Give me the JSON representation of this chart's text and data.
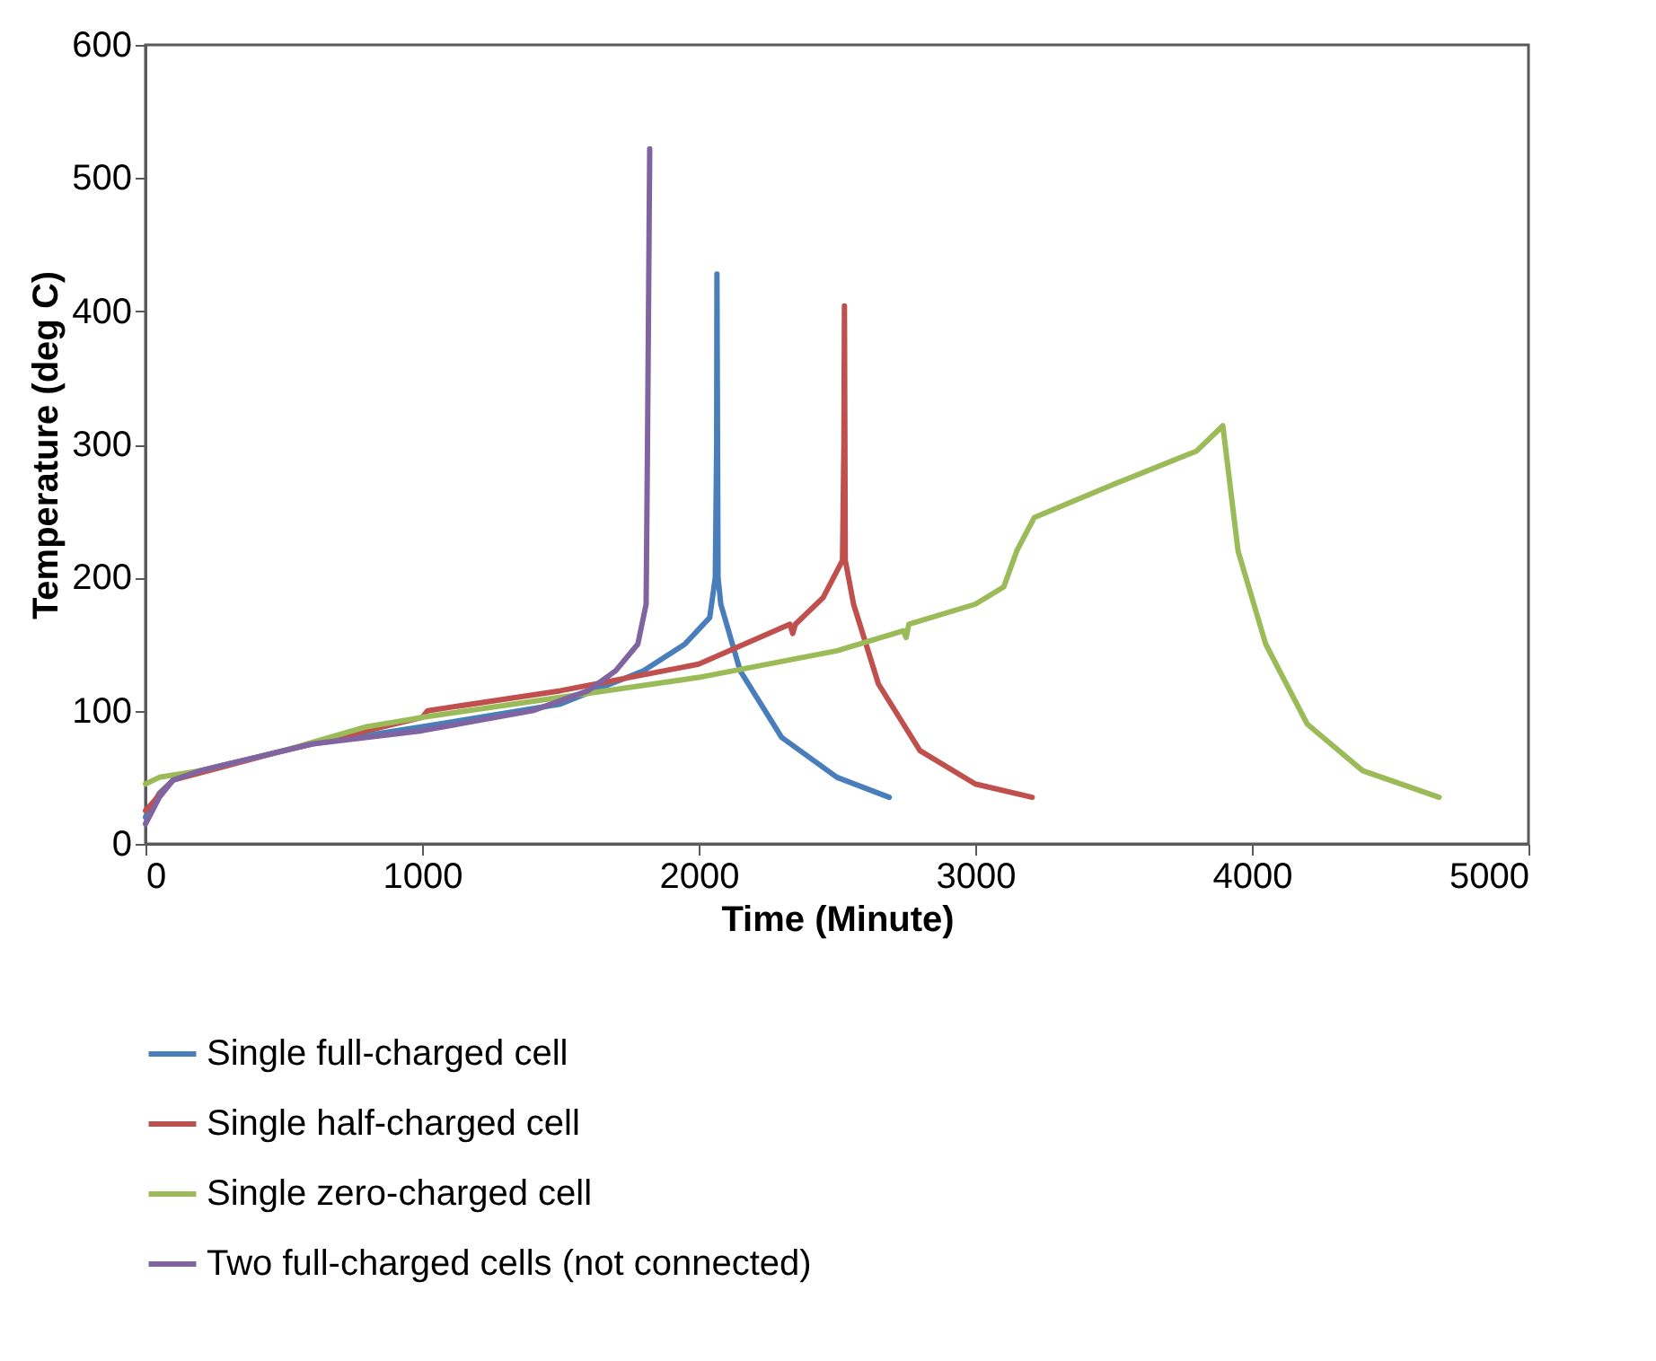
{
  "chart_data": {
    "type": "line",
    "xlabel": "Time (Minute)",
    "ylabel": "Temperature (deg C)",
    "xlim": [
      0,
      5000
    ],
    "ylim": [
      0,
      600
    ],
    "xticks": [
      0,
      1000,
      2000,
      3000,
      4000,
      5000
    ],
    "yticks": [
      0,
      100,
      200,
      300,
      400,
      500,
      600
    ],
    "grid": false,
    "legend": "bottom",
    "line_style": "solid",
    "series": [
      {
        "name": "Single full-charged cell",
        "color": "#4a7ebb",
        "x": [
          0,
          50,
          100,
          200,
          400,
          600,
          1000,
          1500,
          1800,
          1950,
          2040,
          2060,
          2065,
          2066,
          2070,
          2080,
          2150,
          2300,
          2500,
          2689
        ],
        "values": [
          20,
          38,
          48,
          55,
          65,
          75,
          88,
          105,
          130,
          150,
          170,
          200,
          300,
          428,
          200,
          180,
          130,
          80,
          50,
          35
        ]
      },
      {
        "name": "Single half-charged cell",
        "color": "#c0504d",
        "x": [
          0,
          100,
          500,
          1000,
          1020,
          1500,
          2000,
          2330,
          2340,
          2350,
          2450,
          2520,
          2525,
          2527,
          2530,
          2560,
          2650,
          2800,
          3000,
          3206
        ],
        "values": [
          25,
          48,
          70,
          95,
          100,
          115,
          135,
          165,
          158,
          165,
          185,
          213,
          300,
          404,
          213,
          180,
          120,
          70,
          45,
          35
        ]
      },
      {
        "name": "Single zero-charged cell",
        "color": "#9bbb59",
        "x": [
          0,
          50,
          200,
          500,
          800,
          1000,
          1500,
          2000,
          2500,
          2740,
          2750,
          2760,
          3000,
          3103,
          3150,
          3213,
          3500,
          3800,
          3895,
          3950,
          4050,
          4200,
          4400,
          4677
        ],
        "values": [
          45,
          50,
          55,
          70,
          88,
          95,
          110,
          125,
          145,
          160,
          155,
          165,
          180,
          193,
          220,
          245,
          270,
          295,
          314,
          220,
          150,
          90,
          55,
          35
        ]
      },
      {
        "name": "Two full-charged cells (not connected)",
        "color": "#8064a2",
        "x": [
          0,
          50,
          100,
          200,
          400,
          600,
          1000,
          1400,
          1600,
          1700,
          1780,
          1810,
          1815,
          1823
        ],
        "values": [
          15,
          35,
          48,
          55,
          65,
          75,
          85,
          100,
          115,
          130,
          150,
          180,
          300,
          522
        ]
      }
    ]
  }
}
